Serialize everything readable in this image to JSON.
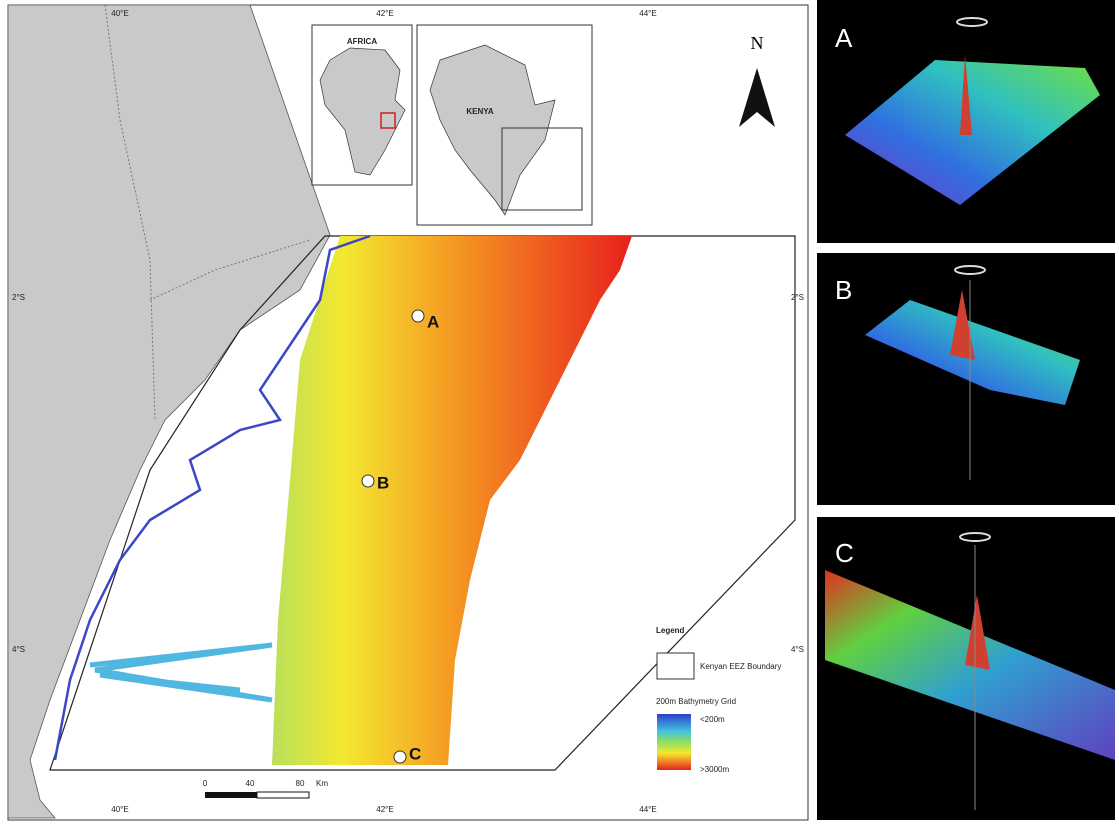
{
  "map": {
    "grid_labels": {
      "top": [
        "40°E",
        "42°E",
        "44°E"
      ],
      "bottom": [
        "40°E",
        "42°E",
        "44°E"
      ],
      "left": [
        "2°S",
        "4°S"
      ],
      "right": [
        "2°S",
        "4°S"
      ]
    },
    "inset_labels": {
      "africa": "AFRICA",
      "kenya": "KENYA"
    },
    "north": "N",
    "sites": [
      "A",
      "B",
      "C"
    ],
    "legend": {
      "title": "Legend",
      "boundary": "Kenyan EEZ Boundary",
      "grid": "200m Bathymetry Grid",
      "shallow": "<200m",
      "deep": ">3000m"
    },
    "scale": [
      "0",
      "40",
      "80",
      "Km"
    ]
  },
  "panels": [
    "A",
    "B",
    "C"
  ]
}
